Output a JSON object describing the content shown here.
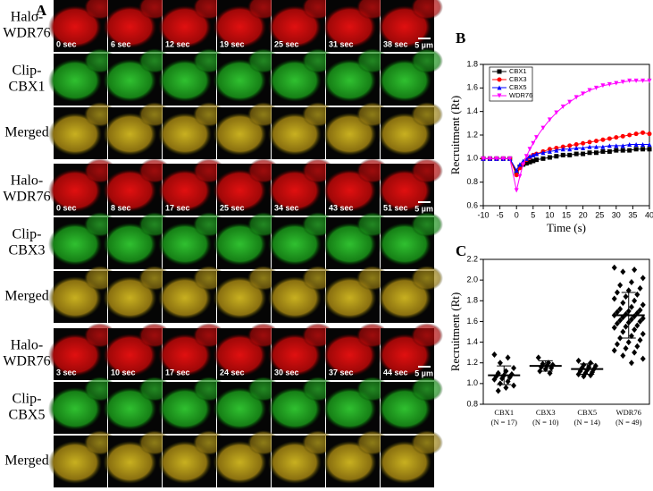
{
  "panel_a": {
    "label": "A",
    "groups": [
      {
        "rows": [
          [
            "Halo-",
            "WDR76"
          ],
          [
            "Clip-",
            "CBX1"
          ],
          [
            "Merged"
          ]
        ],
        "times": [
          "0 sec",
          "6 sec",
          "12 sec",
          "19 sec",
          "25 sec",
          "31 sec",
          "38 sec"
        ],
        "scale": "5 µm"
      },
      {
        "rows": [
          [
            "Halo-",
            "WDR76"
          ],
          [
            "Clip-",
            "CBX3"
          ],
          [
            "Merged"
          ]
        ],
        "times": [
          "0 sec",
          "8 sec",
          "17 sec",
          "25 sec",
          "34 sec",
          "43 sec",
          "51 sec"
        ],
        "scale": "5 µm"
      },
      {
        "rows": [
          [
            "Halo-",
            "WDR76"
          ],
          [
            "Clip-",
            "CBX5"
          ],
          [
            "Merged"
          ]
        ],
        "times": [
          "3 sec",
          "10 sec",
          "17 sec",
          "24 sec",
          "30 sec",
          "37 sec",
          "44 sec"
        ],
        "scale": "5 µm"
      }
    ]
  },
  "chart_data": [
    {
      "type": "line",
      "label": "B",
      "x_label": "Time (s)",
      "y_label": "Recruitment (Rt)",
      "x": [
        -10,
        -8,
        -6,
        -4,
        -2,
        0,
        1,
        2,
        3,
        4,
        5,
        6,
        8,
        10,
        12,
        14,
        16,
        18,
        20,
        22,
        24,
        26,
        28,
        30,
        32,
        34,
        36,
        38,
        40
      ],
      "series": [
        {
          "name": "CBX1",
          "color": "#000000",
          "marker": "square",
          "values": [
            1,
            1,
            1,
            1,
            1,
            0.88,
            0.93,
            0.95,
            0.96,
            0.97,
            0.98,
            0.99,
            1.0,
            1.01,
            1.02,
            1.03,
            1.03,
            1.04,
            1.04,
            1.05,
            1.05,
            1.06,
            1.06,
            1.07,
            1.07,
            1.07,
            1.08,
            1.08,
            1.08
          ]
        },
        {
          "name": "CBX3",
          "color": "#ff0000",
          "marker": "circle",
          "values": [
            1,
            1,
            1,
            1,
            1,
            0.86,
            0.92,
            0.96,
            0.99,
            1.01,
            1.03,
            1.04,
            1.06,
            1.08,
            1.09,
            1.1,
            1.11,
            1.12,
            1.13,
            1.14,
            1.15,
            1.16,
            1.17,
            1.18,
            1.19,
            1.2,
            1.21,
            1.22,
            1.21
          ]
        },
        {
          "name": "CBX5",
          "color": "#0000ff",
          "marker": "triangle",
          "values": [
            1,
            1,
            1,
            1,
            1,
            0.9,
            0.95,
            0.98,
            1.0,
            1.02,
            1.03,
            1.04,
            1.05,
            1.06,
            1.07,
            1.08,
            1.08,
            1.09,
            1.09,
            1.1,
            1.1,
            1.1,
            1.11,
            1.11,
            1.11,
            1.12,
            1.12,
            1.12,
            1.12
          ]
        },
        {
          "name": "WDR76",
          "color": "#ff00ff",
          "marker": "down-triangle",
          "values": [
            1,
            1,
            1,
            1,
            1,
            0.73,
            0.85,
            0.95,
            1.02,
            1.08,
            1.13,
            1.18,
            1.26,
            1.33,
            1.39,
            1.44,
            1.48,
            1.52,
            1.55,
            1.58,
            1.6,
            1.62,
            1.63,
            1.64,
            1.65,
            1.66,
            1.66,
            1.66,
            1.66
          ]
        }
      ],
      "xlim": [
        -10,
        40
      ],
      "xticks": [
        -10,
        -5,
        0,
        5,
        10,
        15,
        20,
        25,
        30,
        35,
        40
      ],
      "ylim": [
        0.6,
        1.8
      ],
      "yticks": [
        0.6,
        0.8,
        {
          "value": 1,
          "label": "1.0"
        },
        1.2,
        1.4,
        1.6,
        1.8
      ],
      "legend": "top-left"
    },
    {
      "type": "strip",
      "label": "C",
      "y_label": "Recruitment (Rt)",
      "categories": [
        "CBX1",
        "CBX3",
        "CBX5",
        "WDR76"
      ],
      "category_notes": [
        "(N = 17)",
        "(N = 10)",
        "(N = 14)",
        "(N = 49)"
      ],
      "groups": [
        [
          1.28,
          1.25,
          1.2,
          1.15,
          1.12,
          1.1,
          1.09,
          1.08,
          1.07,
          1.06,
          1.05,
          1.04,
          1.02,
          1.0,
          0.98,
          0.96,
          0.93
        ],
        [
          1.25,
          1.2,
          1.19,
          1.18,
          1.17,
          1.16,
          1.15,
          1.14,
          1.12,
          1.1
        ],
        [
          1.22,
          1.2,
          1.18,
          1.17,
          1.16,
          1.15,
          1.14,
          1.13,
          1.12,
          1.11,
          1.1,
          1.09,
          1.08,
          1.07
        ],
        [
          2.12,
          2.1,
          2.08,
          2.02,
          1.98,
          1.95,
          1.92,
          1.9,
          1.88,
          1.86,
          1.84,
          1.82,
          1.8,
          1.78,
          1.76,
          1.74,
          1.72,
          1.71,
          1.7,
          1.69,
          1.68,
          1.67,
          1.66,
          1.65,
          1.64,
          1.63,
          1.62,
          1.61,
          1.6,
          1.59,
          1.58,
          1.56,
          1.55,
          1.54,
          1.52,
          1.5,
          1.48,
          1.46,
          1.44,
          1.42,
          1.4,
          1.38,
          1.36,
          1.34,
          1.32,
          1.3,
          1.27,
          1.24,
          1.2
        ]
      ],
      "means": [
        1.08,
        1.17,
        1.14,
        1.66
      ],
      "sd": [
        0.09,
        0.05,
        0.05,
        0.22
      ],
      "ylim": [
        0.8,
        2.2
      ],
      "yticks": [
        0.8,
        {
          "value": 1,
          "label": "1.0"
        },
        1.2,
        1.4,
        1.6,
        1.8,
        {
          "value": 2,
          "label": "2.0"
        },
        2.2
      ]
    }
  ]
}
